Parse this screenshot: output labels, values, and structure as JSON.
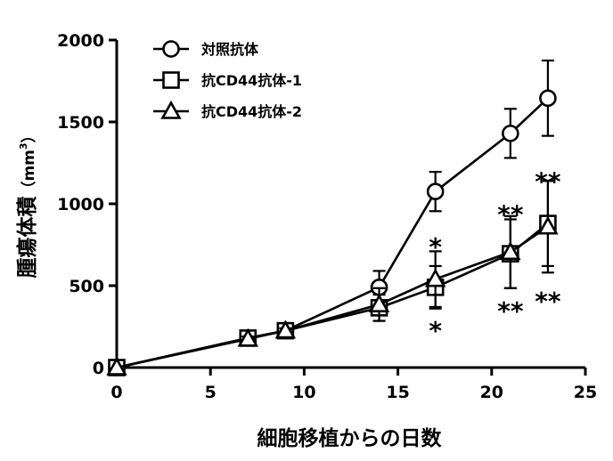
{
  "chart_data": {
    "type": "line",
    "xlabel": "細胞移植からの日数",
    "ylabel": "腫瘍体積（mm³）",
    "ylabel_parts": {
      "main": "腫瘍体積",
      "unit_open": "（mm",
      "unit_sup": "3",
      "unit_close": "）"
    },
    "xlim": [
      0,
      25
    ],
    "ylim": [
      0,
      2000
    ],
    "xticks": [
      0,
      5,
      10,
      15,
      20,
      25
    ],
    "yticks": [
      0,
      500,
      1000,
      1500,
      2000
    ],
    "x_tick_labels": [
      "0",
      "5",
      "10",
      "15",
      "20",
      "25"
    ],
    "y_tick_labels": [
      "0",
      "500",
      "1000",
      "1500",
      "2000"
    ],
    "grid": false,
    "legend_position": "top-left",
    "series": [
      {
        "name": "対照抗体",
        "marker": "circle",
        "points": [
          {
            "x": 0,
            "y": 0,
            "err": 0
          },
          {
            "x": 7,
            "y": 180,
            "err": 15
          },
          {
            "x": 9,
            "y": 225,
            "err": 15
          },
          {
            "x": 14,
            "y": 490,
            "err": 100
          },
          {
            "x": 17,
            "y": 1075,
            "err": 120
          },
          {
            "x": 21,
            "y": 1430,
            "err": 150
          },
          {
            "x": 23,
            "y": 1645,
            "err": 230
          }
        ]
      },
      {
        "name": "抗CD44抗体-1",
        "marker": "square",
        "points": [
          {
            "x": 0,
            "y": 0,
            "err": 0
          },
          {
            "x": 7,
            "y": 180,
            "err": 15
          },
          {
            "x": 9,
            "y": 225,
            "err": 15
          },
          {
            "x": 14,
            "y": 365,
            "err": 80
          },
          {
            "x": 17,
            "y": 490,
            "err": 130
          },
          {
            "x": 21,
            "y": 695,
            "err": 210
          },
          {
            "x": 23,
            "y": 880,
            "err": 260
          }
        ]
      },
      {
        "name": "抗CD44抗体-2",
        "marker": "triangle",
        "points": [
          {
            "x": 0,
            "y": 0,
            "err": 0
          },
          {
            "x": 7,
            "y": 175,
            "err": 15
          },
          {
            "x": 9,
            "y": 225,
            "err": 15
          },
          {
            "x": 14,
            "y": 385,
            "err": 100
          },
          {
            "x": 17,
            "y": 540,
            "err": 170
          },
          {
            "x": 21,
            "y": 705,
            "err": 220
          },
          {
            "x": 23,
            "y": 860,
            "err": 280
          }
        ]
      }
    ],
    "annotations": [
      {
        "text": "*",
        "x": 17,
        "y": 760
      },
      {
        "text": "*",
        "x": 17,
        "y": 250
      },
      {
        "text": "**",
        "x": 21,
        "y": 960
      },
      {
        "text": "**",
        "x": 21,
        "y": 370
      },
      {
        "text": "**",
        "x": 23,
        "y": 1160
      },
      {
        "text": "**",
        "x": 23,
        "y": 430
      }
    ]
  }
}
